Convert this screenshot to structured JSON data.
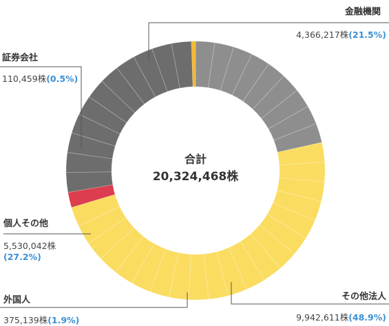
{
  "chart_data": {
    "type": "pie",
    "variant": "donut",
    "center_label": "合計",
    "center_value": "20,324,468株",
    "slices": [
      {
        "key": "kinyu",
        "name": "金融機関",
        "shares": "4,366,217株",
        "percent": "(21.5%)",
        "value": 21.5,
        "color": "#8e8e8e",
        "segments": 9
      },
      {
        "key": "sonota",
        "name": "その他法人",
        "shares": "9,942,611株",
        "percent": "(48.9%)",
        "value": 48.9,
        "color": "#fadc60",
        "segments": 20
      },
      {
        "key": "gaikoku",
        "name": "外国人",
        "shares": "375,139株",
        "percent": "(1.9%)",
        "value": 1.9,
        "color": "#dc3d4f",
        "segments": 1
      },
      {
        "key": "kojin",
        "name": "個人その他",
        "shares": "5,530,042株",
        "percent": "(27.2%)",
        "value": 27.2,
        "color": "#6d6d6d",
        "segments": 11
      },
      {
        "key": "shoken",
        "name": "証券会社",
        "shares": "110,459株",
        "percent": "(0.5%)",
        "value": 0.5,
        "color": "#f5b731",
        "segments": 1
      }
    ]
  }
}
